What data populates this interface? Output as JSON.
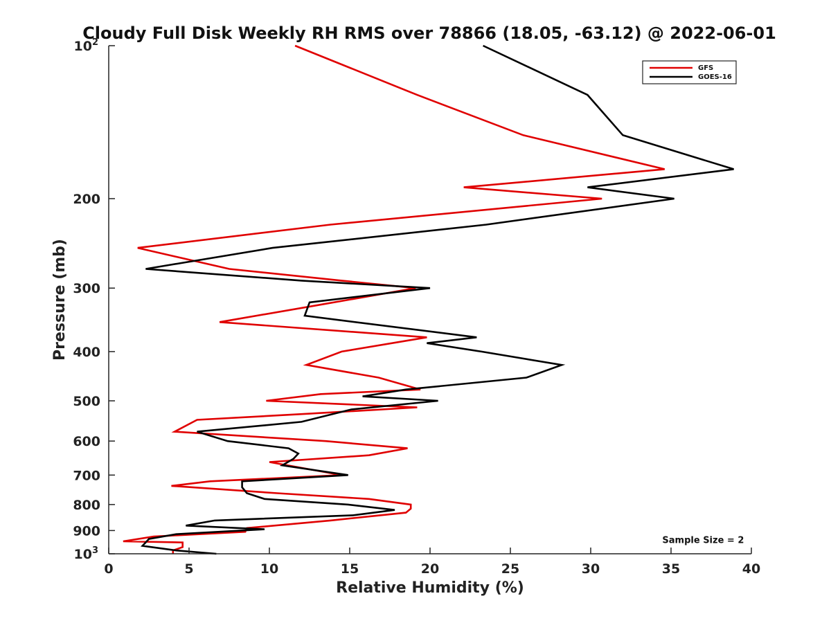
{
  "chart_data": {
    "type": "line",
    "title": "Cloudy Full Disk Weekly RH RMS over 78866 (18.05, -63.12) @ 2022-06-01",
    "xlabel": "Relative Humidity (%)",
    "ylabel": "Pressure (mb)",
    "xlim": [
      0,
      40
    ],
    "ylim": [
      100,
      1000
    ],
    "yscale": "log",
    "yreversed": true,
    "xticks": [
      0,
      5,
      10,
      15,
      20,
      25,
      30,
      35,
      40
    ],
    "xtick_labels": [
      "0",
      "5",
      "10",
      "15",
      "20",
      "25",
      "30",
      "35",
      "40"
    ],
    "yticks": [
      100,
      200,
      300,
      400,
      500,
      600,
      700,
      800,
      900,
      1000
    ],
    "ytick_labels": [
      {
        "base": "10",
        "exp": "2"
      },
      {
        "base": "200",
        "exp": ""
      },
      {
        "base": "300",
        "exp": ""
      },
      {
        "base": "400",
        "exp": ""
      },
      {
        "base": "500",
        "exp": ""
      },
      {
        "base": "600",
        "exp": ""
      },
      {
        "base": "700",
        "exp": ""
      },
      {
        "base": "800",
        "exp": ""
      },
      {
        "base": "900",
        "exp": ""
      },
      {
        "base": "10",
        "exp": "3"
      }
    ],
    "grid": false,
    "legend_position": "top-right",
    "series": [
      {
        "name": "GFS",
        "color": "#e00000",
        "points": [
          [
            11.6,
            100
          ],
          [
            19.2,
            125
          ],
          [
            25.8,
            150
          ],
          [
            34.6,
            175
          ],
          [
            22.1,
            190
          ],
          [
            30.7,
            200
          ],
          [
            13.8,
            225
          ],
          [
            1.8,
            250
          ],
          [
            7.5,
            275
          ],
          [
            14.5,
            290
          ],
          [
            19.1,
            300
          ],
          [
            12.8,
            325
          ],
          [
            6.9,
            350
          ],
          [
            19.8,
            375
          ],
          [
            14.5,
            400
          ],
          [
            12.3,
            425
          ],
          [
            16.8,
            450
          ],
          [
            19.4,
            475
          ],
          [
            13.2,
            485
          ],
          [
            9.8,
            500
          ],
          [
            19.2,
            515
          ],
          [
            12.5,
            530
          ],
          [
            5.5,
            545
          ],
          [
            4.1,
            575
          ],
          [
            13.5,
            600
          ],
          [
            18.6,
            620
          ],
          [
            16.2,
            640
          ],
          [
            10.0,
            660
          ],
          [
            12.3,
            680
          ],
          [
            14.5,
            700
          ],
          [
            6.3,
            720
          ],
          [
            3.9,
            735
          ],
          [
            10.5,
            760
          ],
          [
            16.2,
            780
          ],
          [
            18.8,
            800
          ],
          [
            18.8,
            815
          ],
          [
            18.5,
            830
          ],
          [
            13.8,
            860
          ],
          [
            8.6,
            890
          ],
          [
            8.5,
            905
          ],
          [
            2.8,
            925
          ],
          [
            0.9,
            945
          ],
          [
            4.6,
            950
          ],
          [
            4.6,
            970
          ],
          [
            4.0,
            985
          ],
          [
            4.0,
            1000
          ]
        ]
      },
      {
        "name": "GOES-16",
        "color": "#000000",
        "points": [
          [
            23.3,
            100
          ],
          [
            29.8,
            125
          ],
          [
            32.0,
            150
          ],
          [
            38.9,
            175
          ],
          [
            29.8,
            190
          ],
          [
            35.2,
            200
          ],
          [
            23.5,
            225
          ],
          [
            10.2,
            250
          ],
          [
            2.3,
            275
          ],
          [
            12.0,
            290
          ],
          [
            20.0,
            300
          ],
          [
            12.5,
            320
          ],
          [
            12.2,
            340
          ],
          [
            22.9,
            375
          ],
          [
            19.8,
            385
          ],
          [
            23.2,
            400
          ],
          [
            28.2,
            425
          ],
          [
            26.0,
            450
          ],
          [
            18.5,
            475
          ],
          [
            15.8,
            490
          ],
          [
            20.5,
            500
          ],
          [
            15.1,
            520
          ],
          [
            12.0,
            550
          ],
          [
            5.5,
            575
          ],
          [
            7.4,
            600
          ],
          [
            11.2,
            620
          ],
          [
            11.8,
            635
          ],
          [
            11.5,
            650
          ],
          [
            10.8,
            670
          ],
          [
            14.9,
            700
          ],
          [
            8.3,
            720
          ],
          [
            8.3,
            740
          ],
          [
            8.6,
            760
          ],
          [
            9.7,
            780
          ],
          [
            14.9,
            800
          ],
          [
            17.8,
            820
          ],
          [
            15.2,
            840
          ],
          [
            6.6,
            860
          ],
          [
            4.8,
            880
          ],
          [
            9.7,
            895
          ],
          [
            4.2,
            915
          ],
          [
            2.5,
            935
          ],
          [
            2.3,
            950
          ],
          [
            2.1,
            965
          ],
          [
            4.2,
            985
          ],
          [
            6.7,
            1000
          ]
        ]
      }
    ],
    "annotations": [
      {
        "text": "Sample Size = 2",
        "x": 37.0,
        "y": 940
      }
    ]
  }
}
